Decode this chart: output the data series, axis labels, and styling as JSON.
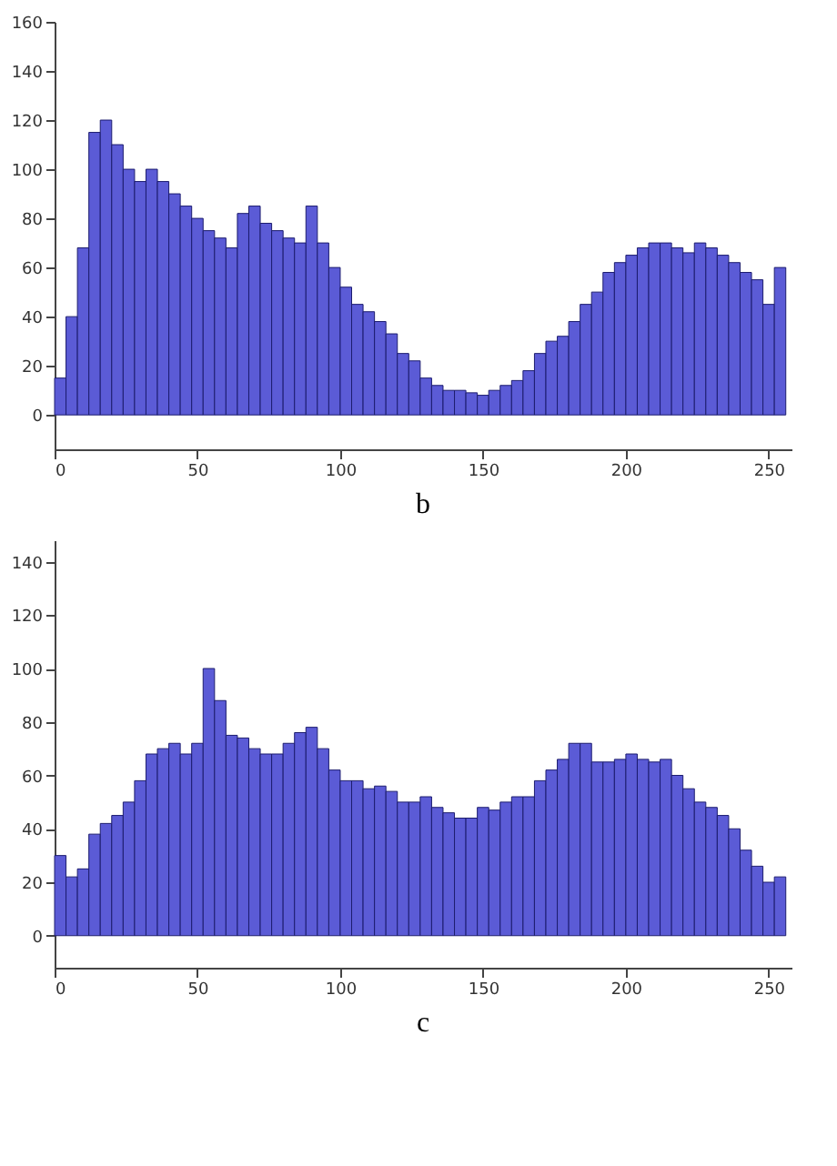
{
  "chart_data": [
    {
      "type": "histogram",
      "title": "b",
      "bins": [
        0,
        4,
        8,
        12,
        16,
        20,
        24,
        28,
        32,
        36,
        40,
        44,
        48,
        52,
        56,
        60,
        64,
        68,
        72,
        76,
        80,
        84,
        88,
        92,
        96,
        100,
        104,
        108,
        112,
        116,
        120,
        124,
        128,
        132,
        136,
        140,
        144,
        148,
        152,
        156,
        160,
        164,
        168,
        172,
        176,
        180,
        184,
        188,
        192,
        196,
        200,
        204,
        208,
        212,
        216,
        220,
        224,
        228,
        232,
        236,
        240,
        244,
        248,
        252,
        256
      ],
      "values": [
        15,
        40,
        68,
        115,
        120,
        110,
        100,
        95,
        100,
        95,
        90,
        85,
        80,
        75,
        72,
        68,
        82,
        85,
        78,
        75,
        72,
        70,
        85,
        70,
        60,
        52,
        45,
        42,
        38,
        33,
        25,
        22,
        15,
        12,
        10,
        10,
        9,
        8,
        10,
        12,
        14,
        18,
        25,
        30,
        32,
        38,
        45,
        50,
        58,
        62,
        65,
        68,
        70,
        70,
        68,
        66,
        70,
        68,
        65,
        62,
        58,
        55,
        45,
        60
      ],
      "color": "#5b5bd6",
      "xlim": [
        0,
        258
      ],
      "ylim": [
        -14,
        160
      ],
      "xticks": [
        0,
        50,
        100,
        150,
        200,
        250
      ],
      "yticks": [
        0,
        20,
        40,
        60,
        80,
        100,
        120,
        140,
        160
      ],
      "grid": false
    },
    {
      "type": "histogram",
      "title": "c",
      "bins": [
        0,
        4,
        8,
        12,
        16,
        20,
        24,
        28,
        32,
        36,
        40,
        44,
        48,
        52,
        56,
        60,
        64,
        68,
        72,
        76,
        80,
        84,
        88,
        92,
        96,
        100,
        104,
        108,
        112,
        116,
        120,
        124,
        128,
        132,
        136,
        140,
        144,
        148,
        152,
        156,
        160,
        164,
        168,
        172,
        176,
        180,
        184,
        188,
        192,
        196,
        200,
        204,
        208,
        212,
        216,
        220,
        224,
        228,
        232,
        236,
        240,
        244,
        248,
        252,
        256
      ],
      "values": [
        30,
        22,
        25,
        38,
        42,
        45,
        50,
        58,
        68,
        70,
        72,
        68,
        72,
        100,
        88,
        75,
        74,
        70,
        68,
        68,
        72,
        76,
        78,
        70,
        62,
        58,
        58,
        55,
        56,
        54,
        50,
        50,
        52,
        48,
        46,
        44,
        44,
        48,
        47,
        50,
        52,
        52,
        58,
        62,
        66,
        72,
        72,
        65,
        65,
        66,
        68,
        66,
        65,
        66,
        60,
        55,
        50,
        48,
        45,
        40,
        32,
        26,
        20,
        22
      ],
      "color": "#5b5bd6",
      "xlim": [
        0,
        258
      ],
      "ylim": [
        -12,
        148
      ],
      "xticks": [
        0,
        50,
        100,
        150,
        200,
        250
      ],
      "yticks": [
        0,
        20,
        40,
        60,
        80,
        100,
        120,
        140
      ],
      "grid": false
    }
  ]
}
